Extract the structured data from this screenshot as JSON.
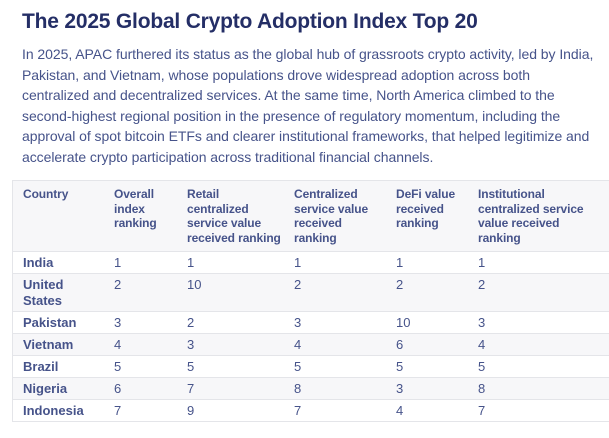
{
  "page": {
    "title": "The 2025 Global Crypto Adoption Index Top 20",
    "intro": "In 2025, APAC furthered its status as the global hub of grassroots crypto activity, led by India, Pakistan, and Vietnam, whose populations drove widespread adoption across both centralized and decentralized services. At the same time, North America climbed to the second-highest regional position in the presence of regulatory momentum, including the approval of spot bitcoin ETFs and clearer institutional frameworks, that helped legitimize and accelerate crypto participation across traditional financial channels."
  },
  "table": {
    "columns": [
      "Country",
      "Overall index ranking",
      "Retail centralized service value received ranking",
      "Centralized service value received ranking",
      "DeFi value received ranking",
      "Institutional centralized service value received ranking"
    ],
    "rows": [
      {
        "country": "India",
        "values": [
          "1",
          "1",
          "1",
          "1",
          "1"
        ]
      },
      {
        "country": "United States",
        "values": [
          "2",
          "10",
          "2",
          "2",
          "2"
        ]
      },
      {
        "country": "Pakistan",
        "values": [
          "3",
          "2",
          "3",
          "10",
          "3"
        ]
      },
      {
        "country": "Vietnam",
        "values": [
          "4",
          "3",
          "4",
          "6",
          "4"
        ]
      },
      {
        "country": "Brazil",
        "values": [
          "5",
          "5",
          "5",
          "5",
          "5"
        ]
      },
      {
        "country": "Nigeria",
        "values": [
          "6",
          "7",
          "8",
          "3",
          "8"
        ]
      },
      {
        "country": "Indonesia",
        "values": [
          "7",
          "9",
          "7",
          "4",
          "7"
        ]
      }
    ]
  },
  "colors": {
    "title_text": "#242e66",
    "body_text": "#46538a",
    "table_border": "#e4e5e9",
    "stripe_bg": "#f7f7f9"
  },
  "chart_data": {
    "type": "table",
    "title": "The 2025 Global Crypto Adoption Index Top 20",
    "categories": [
      "India",
      "United States",
      "Pakistan",
      "Vietnam",
      "Brazil",
      "Nigeria",
      "Indonesia"
    ],
    "series": [
      {
        "name": "Overall index ranking",
        "values": [
          1,
          2,
          3,
          4,
          5,
          6,
          7
        ]
      },
      {
        "name": "Retail centralized service value received ranking",
        "values": [
          1,
          10,
          2,
          3,
          5,
          7,
          9
        ]
      },
      {
        "name": "Centralized service value received ranking",
        "values": [
          1,
          2,
          3,
          4,
          5,
          8,
          7
        ]
      },
      {
        "name": "DeFi value received ranking",
        "values": [
          1,
          2,
          10,
          6,
          5,
          3,
          4
        ]
      },
      {
        "name": "Institutional centralized service value received ranking",
        "values": [
          1,
          2,
          3,
          4,
          5,
          8,
          7
        ]
      }
    ]
  }
}
